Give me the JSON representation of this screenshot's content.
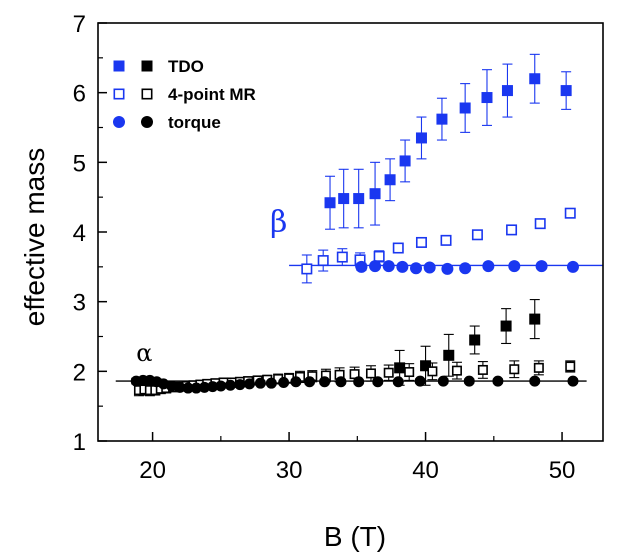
{
  "chart_data": {
    "type": "scatter",
    "xlabel": "B (T)",
    "ylabel": "effective mass",
    "xlim": [
      16,
      53
    ],
    "ylim": [
      1,
      7
    ],
    "xticks": [
      20,
      30,
      40,
      50
    ],
    "yticks": [
      1,
      2,
      3,
      4,
      5,
      6,
      7
    ],
    "grid": false,
    "legend_position": "top-left",
    "colors": {
      "blue": "#1a37f0",
      "black": "#000000"
    },
    "legend": [
      {
        "label": "TDO",
        "markers": [
          "filled-square-blue",
          "filled-square-black"
        ]
      },
      {
        "label": "4-point MR",
        "markers": [
          "open-square-blue",
          "open-square-black"
        ]
      },
      {
        "label": "torque",
        "markers": [
          "filled-circle-blue",
          "filled-circle-black"
        ]
      }
    ],
    "annotations": [
      {
        "text": "α",
        "x": 18.8,
        "y": 2.15,
        "color": "#000000"
      },
      {
        "text": "β",
        "x": 28.6,
        "y": 4.0,
        "color": "#1a37f0"
      }
    ],
    "fit_lines": [
      {
        "name_ref": "beta",
        "x": [
          30,
          53
        ],
        "y": [
          3.52,
          3.52
        ],
        "color": "#1a37f0"
      },
      {
        "name_ref": "alpha",
        "x": [
          17.3,
          51.8
        ],
        "y": [
          1.86,
          1.86
        ],
        "color": "#000000"
      }
    ],
    "series": [
      {
        "legend_ref": "TDO",
        "color": "#1a37f0",
        "marker": "filled-square",
        "x": [
          33.0,
          34.0,
          35.1,
          36.3,
          37.4,
          38.5,
          39.7,
          41.2,
          42.9,
          44.5,
          46.0,
          48.0,
          50.3
        ],
        "y": [
          4.42,
          4.48,
          4.48,
          4.55,
          4.75,
          5.02,
          5.35,
          5.62,
          5.78,
          5.93,
          6.03,
          6.2,
          6.03
        ],
        "err": [
          0.38,
          0.42,
          0.42,
          0.45,
          0.3,
          0.3,
          0.3,
          0.3,
          0.35,
          0.4,
          0.38,
          0.35,
          0.27
        ]
      },
      {
        "legend_ref": "4-point MR",
        "color": "#1a37f0",
        "marker": "open-square",
        "x": [
          31.3,
          32.5,
          33.9,
          35.2,
          36.6,
          38.0,
          39.7,
          41.5,
          43.8,
          46.3,
          48.4,
          50.6
        ],
        "y": [
          3.47,
          3.59,
          3.64,
          3.6,
          3.65,
          3.77,
          3.85,
          3.88,
          3.96,
          4.03,
          4.12,
          4.27
        ],
        "err": [
          0.2,
          0.15,
          0.12,
          0.1,
          0.08,
          0.06,
          0.06,
          0.06,
          0.05,
          0.05,
          0.05,
          0.05
        ]
      },
      {
        "legend_ref": "torque",
        "color": "#1a37f0",
        "marker": "filled-circle",
        "x": [
          35.3,
          36.3,
          37.3,
          38.3,
          39.3,
          40.3,
          41.6,
          42.9,
          44.6,
          46.5,
          48.5,
          50.8
        ],
        "y": [
          3.5,
          3.51,
          3.51,
          3.5,
          3.48,
          3.49,
          3.47,
          3.48,
          3.51,
          3.51,
          3.51,
          3.5
        ],
        "err": [
          0.05,
          0.04,
          0.04,
          0.04,
          0.04,
          0.04,
          0.04,
          0.04,
          0.04,
          0.04,
          0.04,
          0.04
        ]
      },
      {
        "legend_ref": "TDO",
        "color": "#000000",
        "marker": "filled-square",
        "x": [
          38.1,
          40.0,
          41.7,
          43.6,
          45.9,
          48.0
        ],
        "y": [
          2.05,
          2.08,
          2.23,
          2.45,
          2.65,
          2.75
        ],
        "err": [
          0.25,
          0.28,
          0.3,
          0.2,
          0.25,
          0.28
        ]
      },
      {
        "legend_ref": "4-point MR",
        "color": "#000000",
        "marker": "open-square",
        "x": [
          19.0,
          19.4,
          19.8,
          20.2,
          20.6,
          21.0,
          21.5,
          22.0,
          22.5,
          23.0,
          23.5,
          24.0,
          24.6,
          25.2,
          25.8,
          26.4,
          27.0,
          27.7,
          28.4,
          29.2,
          30.0,
          30.8,
          31.7,
          32.7,
          33.7,
          34.8,
          36.0,
          37.3,
          38.8,
          40.5,
          42.3,
          44.2,
          46.5,
          48.3,
          50.6
        ],
        "y": [
          1.73,
          1.74,
          1.73,
          1.73,
          1.75,
          1.76,
          1.77,
          1.78,
          1.79,
          1.8,
          1.81,
          1.82,
          1.83,
          1.84,
          1.84,
          1.85,
          1.86,
          1.87,
          1.88,
          1.89,
          1.9,
          1.92,
          1.93,
          1.94,
          1.95,
          1.96,
          1.97,
          1.98,
          1.99,
          2.0,
          2.01,
          2.02,
          2.03,
          2.05,
          2.07
        ],
        "err": [
          0.08,
          0.08,
          0.08,
          0.07,
          0.07,
          0.07,
          0.06,
          0.06,
          0.06,
          0.06,
          0.05,
          0.05,
          0.05,
          0.05,
          0.05,
          0.05,
          0.06,
          0.06,
          0.06,
          0.07,
          0.07,
          0.08,
          0.08,
          0.09,
          0.1,
          0.1,
          0.11,
          0.11,
          0.12,
          0.12,
          0.12,
          0.12,
          0.12,
          0.1,
          0.08
        ]
      },
      {
        "legend_ref": "torque",
        "color": "#000000",
        "marker": "filled-circle",
        "x": [
          18.8,
          19.3,
          19.8,
          20.3,
          20.8,
          21.4,
          22.0,
          22.6,
          23.2,
          23.8,
          24.4,
          25.0,
          25.7,
          26.4,
          27.1,
          27.9,
          28.7,
          29.6,
          30.5,
          31.5,
          32.6,
          33.8,
          35.1,
          36.5,
          38.0,
          39.6,
          41.3,
          43.2,
          45.3,
          48.0,
          50.8
        ],
        "y": [
          1.86,
          1.87,
          1.87,
          1.85,
          1.82,
          1.79,
          1.77,
          1.76,
          1.76,
          1.77,
          1.78,
          1.79,
          1.8,
          1.81,
          1.82,
          1.83,
          1.83,
          1.84,
          1.85,
          1.85,
          1.85,
          1.85,
          1.85,
          1.85,
          1.85,
          1.86,
          1.86,
          1.86,
          1.86,
          1.86,
          1.86
        ],
        "err": [
          0.04,
          0.04,
          0.04,
          0.04,
          0.03,
          0.03,
          0.03,
          0.03,
          0.03,
          0.03,
          0.03,
          0.03,
          0.03,
          0.03,
          0.03,
          0.03,
          0.03,
          0.03,
          0.03,
          0.03,
          0.03,
          0.03,
          0.03,
          0.03,
          0.03,
          0.03,
          0.03,
          0.03,
          0.03,
          0.03,
          0.03
        ]
      }
    ]
  }
}
